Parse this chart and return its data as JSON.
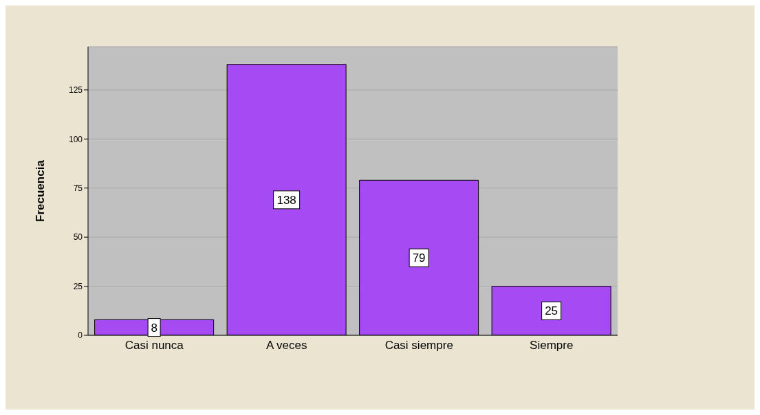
{
  "chart_data": {
    "type": "bar",
    "categories": [
      "Casi nunca",
      "A veces",
      "Casi siempre",
      "Siempre"
    ],
    "values": [
      8,
      138,
      79,
      25
    ],
    "color": "#a64bf4",
    "ylabel": "Frecuencia",
    "ylim": [
      0,
      147
    ],
    "yticks": [
      0,
      25,
      50,
      75,
      100,
      125
    ],
    "grid": "y",
    "data_labels": true
  }
}
